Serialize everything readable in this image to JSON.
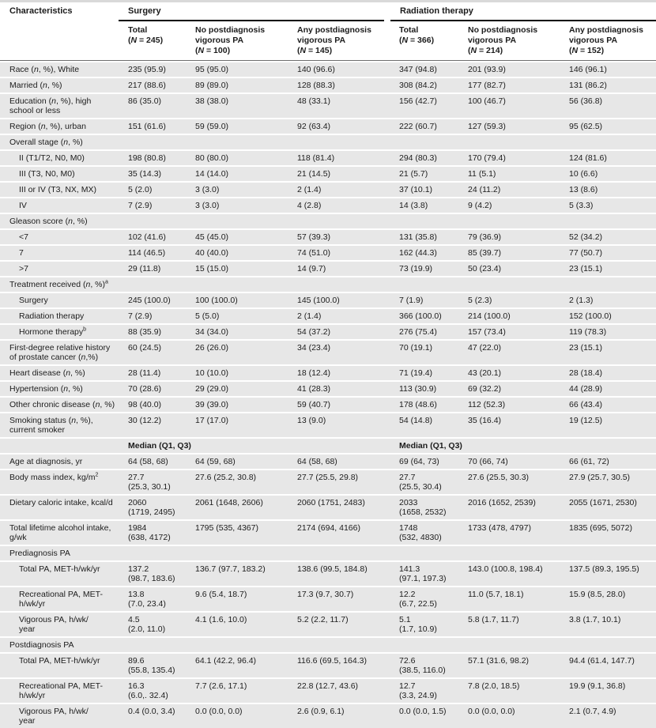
{
  "table": {
    "characteristics_header": "Characteristics",
    "group_headers": [
      "Surgery",
      "Radiation therapy"
    ],
    "column_headers": [
      "Total|(*N* = 245)",
      "No postdiagnosis vigorous PA|(*N* = 100)",
      "Any postdiagnosis vigorous PA|(*N* = 145)",
      "Total|(*N* = 366)",
      "No postdiagnosis vigorous PA|(*N* = 214)",
      "Any postdiagnosis vigorous PA|(*N* = 152)"
    ],
    "median_subheader": "Median (Q1, Q3)",
    "rows": [
      {
        "type": "data",
        "indent": false,
        "label": "Race (*n*, %), White",
        "values": [
          "235 (95.9)",
          "95 (95.0)",
          "140 (96.6)",
          "347 (94.8)",
          "201 (93.9)",
          "146 (96.1)"
        ]
      },
      {
        "type": "data",
        "indent": false,
        "label": "Married (*n*, %)",
        "values": [
          "217 (88.6)",
          "89 (89.0)",
          "128 (88.3)",
          "308 (84.2)",
          "177 (82.7)",
          "131 (86.2)"
        ]
      },
      {
        "type": "data",
        "indent": false,
        "label": "Education (*n*, %), high school or less",
        "values": [
          "86 (35.0)",
          "38 (38.0)",
          "48 (33.1)",
          "156 (42.7)",
          "100 (46.7)",
          "56 (36.8)"
        ]
      },
      {
        "type": "data",
        "indent": false,
        "label": "Region (*n*, %), urban",
        "values": [
          "151 (61.6)",
          "59 (59.0)",
          "92 (63.4)",
          "222 (60.7)",
          "127 (59.3)",
          "95 (62.5)"
        ]
      },
      {
        "type": "section",
        "label": "Overall stage (*n*, %)"
      },
      {
        "type": "data",
        "indent": true,
        "label": "II (T1/T2, N0, M0)",
        "values": [
          "198 (80.8)",
          "80 (80.0)",
          "118 (81.4)",
          "294 (80.3)",
          "170 (79.4)",
          "124 (81.6)"
        ]
      },
      {
        "type": "data",
        "indent": true,
        "label": "III (T3, N0, M0)",
        "values": [
          "35 (14.3)",
          "14 (14.0)",
          "21 (14.5)",
          "21 (5.7)",
          "11 (5.1)",
          "10 (6.6)"
        ]
      },
      {
        "type": "data",
        "indent": true,
        "label": "III or IV (T3, NX, MX)",
        "values": [
          "5 (2.0)",
          "3 (3.0)",
          "2 (1.4)",
          "37 (10.1)",
          "24 (11.2)",
          "13 (8.6)"
        ]
      },
      {
        "type": "data",
        "indent": true,
        "label": "IV",
        "values": [
          "7 (2.9)",
          "3 (3.0)",
          "4 (2.8)",
          "14 (3.8)",
          "9 (4.2)",
          "5 (3.3)"
        ]
      },
      {
        "type": "section",
        "label": "Gleason score (*n*, %)"
      },
      {
        "type": "data",
        "indent": true,
        "label": "<7",
        "values": [
          "102 (41.6)",
          "45 (45.0)",
          "57 (39.3)",
          "131 (35.8)",
          "79 (36.9)",
          "52 (34.2)"
        ]
      },
      {
        "type": "data",
        "indent": true,
        "label": "7",
        "values": [
          "114 (46.5)",
          "40 (40.0)",
          "74 (51.0)",
          "162 (44.3)",
          "85 (39.7)",
          "77 (50.7)"
        ]
      },
      {
        "type": "data",
        "indent": true,
        "label": ">7",
        "values": [
          "29 (11.8)",
          "15 (15.0)",
          "14 (9.7)",
          "73 (19.9)",
          "50 (23.4)",
          "23 (15.1)"
        ]
      },
      {
        "type": "section",
        "label": "Treatment received (*n*, %)^a^"
      },
      {
        "type": "data",
        "indent": true,
        "label": "Surgery",
        "values": [
          "245 (100.0)",
          "100 (100.0)",
          "145 (100.0)",
          "7 (1.9)",
          "5 (2.3)",
          "2 (1.3)"
        ]
      },
      {
        "type": "data",
        "indent": true,
        "label": "Radiation therapy",
        "values": [
          "7 (2.9)",
          "5 (5.0)",
          "2 (1.4)",
          "366 (100.0)",
          "214 (100.0)",
          "152 (100.0)"
        ]
      },
      {
        "type": "data",
        "indent": true,
        "label": "Hormone therapy^b^",
        "values": [
          "88 (35.9)",
          "34 (34.0)",
          "54 (37.2)",
          "276 (75.4)",
          "157 (73.4)",
          "119 (78.3)"
        ]
      },
      {
        "type": "data",
        "indent": false,
        "label": "First-degree relative history of prostate cancer (*n*,%)",
        "values": [
          "60 (24.5)",
          "26 (26.0)",
          "34 (23.4)",
          "70 (19.1)",
          "47 (22.0)",
          "23 (15.1)"
        ]
      },
      {
        "type": "data",
        "indent": false,
        "label": "Heart disease (*n*, %)",
        "values": [
          "28 (11.4)",
          "10 (10.0)",
          "18 (12.4)",
          "71 (19.4)",
          "43 (20.1)",
          "28 (18.4)"
        ]
      },
      {
        "type": "data",
        "indent": false,
        "label": "Hypertension (*n*, %)",
        "values": [
          "70 (28.6)",
          "29 (29.0)",
          "41 (28.3)",
          "113 (30.9)",
          "69 (32.2)",
          "44 (28.9)"
        ]
      },
      {
        "type": "data",
        "indent": false,
        "label": "Other chronic disease (*n*, %)",
        "values": [
          "98 (40.0)",
          "39 (39.0)",
          "59 (40.7)",
          "178 (48.6)",
          "112 (52.3)",
          "66 (43.4)"
        ]
      },
      {
        "type": "data",
        "indent": false,
        "label": "Smoking status (*n*, %), current smoker",
        "values": [
          "30 (12.2)",
          "17 (17.0)",
          "13 (9.0)",
          "54 (14.8)",
          "35 (16.4)",
          "19 (12.5)"
        ]
      },
      {
        "type": "median",
        "label": ""
      },
      {
        "type": "data",
        "indent": false,
        "label": "Age at diagnosis, yr",
        "values": [
          "64 (58, 68)",
          "64 (59, 68)",
          "64 (58, 68)",
          "69 (64, 73)",
          "70 (66, 74)",
          "66 (61, 72)"
        ]
      },
      {
        "type": "data",
        "indent": false,
        "label": "Body mass index, kg/m^2^",
        "values": [
          "27.7|(25.3, 30.1)",
          "27.6 (25.2, 30.8)",
          "27.7 (25.5, 29.8)",
          "27.7|(25.5, 30.4)",
          "27.6 (25.5, 30.3)",
          "27.9 (25.7, 30.5)"
        ]
      },
      {
        "type": "data",
        "indent": false,
        "label": "Dietary caloric intake, kcal/d",
        "values": [
          "2060|(1719, 2495)",
          "2061 (1648, 2606)",
          "2060 (1751, 2483)",
          "2033|(1658, 2532)",
          "2016 (1652, 2539)",
          "2055 (1671, 2530)"
        ]
      },
      {
        "type": "data",
        "indent": false,
        "label": "Total lifetime alcohol intake, g/wk",
        "values": [
          "1984|(638, 4172)",
          "1795 (535, 4367)",
          "2174 (694, 4166)",
          "1748|(532, 4830)",
          "1733 (478, 4797)",
          "1835 (695, 5072)"
        ]
      },
      {
        "type": "section",
        "label": "Prediagnosis PA"
      },
      {
        "type": "data",
        "indent": true,
        "label": "Total PA, MET-h/wk/yr",
        "values": [
          "137.2|(98.7, 183.6)",
          "136.7 (97.7, 183.2)",
          "138.6 (99.5, 184.8)",
          "141.3|(97.1, 197.3)",
          "143.0 (100.8, 198.4)",
          "137.5 (89.3, 195.5)"
        ]
      },
      {
        "type": "data",
        "indent": true,
        "label": "Recreational PA, MET-|h/wk/yr",
        "values": [
          "13.8|(7.0, 23.4)",
          "9.6 (5.4, 18.7)",
          "17.3 (9.7, 30.7)",
          "12.2|(6.7, 22.5)",
          "11.0 (5.7, 18.1)",
          "15.9 (8.5, 28.0)"
        ]
      },
      {
        "type": "data",
        "indent": true,
        "label": "Vigorous PA, h/wk/|year",
        "values": [
          "4.5|(2.0, 11.0)",
          "4.1 (1.6, 10.0)",
          "5.2 (2.2, 11.7)",
          "5.1|(1.7, 10.9)",
          "5.8 (1.7, 11.7)",
          "3.8 (1.7, 10.1)"
        ]
      },
      {
        "type": "section",
        "label": "Postdiagnosis PA"
      },
      {
        "type": "data",
        "indent": true,
        "label": "Total PA, MET-h/wk/yr",
        "values": [
          "89.6|(55.8, 135.4)",
          "64.1 (42.2, 96.4)",
          "116.6 (69.5, 164.3)",
          "72.6|(38.5, 116.0)",
          "57.1 (31.6, 98.2)",
          "94.4 (61.4, 147.7)"
        ]
      },
      {
        "type": "data",
        "indent": true,
        "label": "Recreational PA, MET-|h/wk/yr",
        "values": [
          "16.3|(6.0,. 32.4)",
          "7.7 (2.6, 17.1)",
          "22.8 (12.7, 43.6)",
          "12.7|(3.3, 24.9)",
          "7.8 (2.0, 18.5)",
          "19.9 (9.1, 36.8)"
        ]
      },
      {
        "type": "data",
        "indent": true,
        "label": "Vigorous PA, h/wk/|year",
        "values": [
          "0.4 (0.0, 3.4)",
          "0.0 (0.0, 0.0)",
          "2.6 (0.9, 6.1)",
          "0.0 (0.0, 1.5)",
          "0.0 (0.0, 0.0)",
          "2.1 (0.7, 4.9)"
        ]
      }
    ]
  },
  "colors": {
    "row_background": "#e7e7e7",
    "group_rule": "#000000",
    "header_rule": "#6e6e6e",
    "text": "#1c1c1c"
  }
}
